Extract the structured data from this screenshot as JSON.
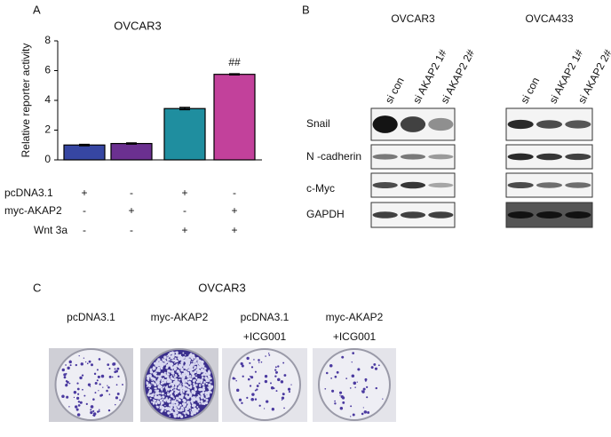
{
  "chart_data": {
    "type": "bar",
    "panel_label": "A",
    "title": "OVCAR3",
    "y_label": "Relative reporter activity",
    "categories": [
      null,
      null,
      null,
      null
    ],
    "values": [
      1.0,
      1.1,
      3.45,
      5.75
    ],
    "errors": [
      0.05,
      0.04,
      0.08,
      0.04
    ],
    "colors": [
      "#3646a2",
      "#6b3090",
      "#1f8e9f",
      "#c2419b"
    ],
    "ylim": [
      0,
      8
    ],
    "yticks": [
      0,
      2,
      4,
      6,
      8
    ],
    "annotations": [
      {
        "index": 3,
        "text": "##"
      }
    ]
  },
  "conditions": {
    "rows": [
      {
        "label": "pcDNA3.1",
        "signs": [
          "+",
          "-",
          "+",
          "-"
        ]
      },
      {
        "label": "myc-AKAP2",
        "signs": [
          "-",
          "+",
          "-",
          "+"
        ]
      },
      {
        "label": "Wnt 3a",
        "signs": [
          "-",
          "-",
          "+",
          "+"
        ]
      }
    ]
  },
  "blots": {
    "panel_label": "B",
    "cell_lines": [
      {
        "name": "OVCAR3",
        "lanes": [
          "si con",
          "si AKAP2 1#",
          "si AKAP2 2#"
        ]
      },
      {
        "name": "OVCA433",
        "lanes": [
          "si con",
          "si AKAP2 1#",
          "si AKAP2 2#"
        ]
      }
    ],
    "proteins": [
      "Snail",
      "N -cadherin",
      "c-Myc",
      "GAPDH"
    ]
  },
  "colonies": {
    "panel_label": "C",
    "title": "OVCAR3",
    "conditions": [
      {
        "lines": [
          "pcDNA3.1"
        ]
      },
      {
        "lines": [
          "myc-AKAP2"
        ]
      },
      {
        "lines": [
          "pcDNA3.1",
          "+ICG001"
        ]
      },
      {
        "lines": [
          "myc-AKAP2",
          "+ICG001"
        ]
      }
    ]
  }
}
